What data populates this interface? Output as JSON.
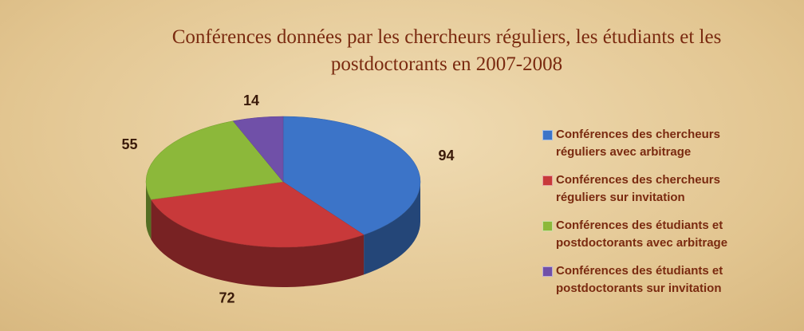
{
  "chart_data": {
    "type": "pie3d",
    "title": "Conférences données par les chercheurs réguliers, les étudiants  et les postdoctorants en 2007-2008",
    "categories": [
      "Conférences des chercheurs réguliers avec arbitrage",
      "Conférences des chercheurs réguliers sur invitation",
      "Conférences des étudiants et postdoctorants avec arbitrage",
      "Conférences des étudiants et postdoctorants sur invitation"
    ],
    "values": [
      94,
      72,
      55,
      14
    ],
    "colors": [
      "#3c74c8",
      "#c8393a",
      "#8cb83a",
      "#7050a8"
    ],
    "legend": "right"
  }
}
